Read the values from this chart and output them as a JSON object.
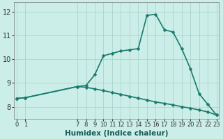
{
  "xlabel": "Humidex (Indice chaleur)",
  "bg_color": "#cceee8",
  "plot_bg_color": "#cceee8",
  "line_color": "#1a7a6e",
  "grid_color": "#aad4cc",
  "ylim": [
    7.5,
    12.4
  ],
  "yticks": [
    8,
    9,
    10,
    11,
    12
  ],
  "ytick_labels": [
    "8",
    "9",
    "10",
    "11",
    "12"
  ],
  "xtick_positions": [
    0,
    1,
    7,
    8,
    9,
    10,
    11,
    12,
    13,
    14,
    15,
    16,
    17,
    18,
    19,
    20,
    21,
    22,
    23
  ],
  "xtick_labels": [
    "0",
    "1",
    "7",
    "8",
    "9",
    "10",
    "11",
    "12",
    "13",
    "14",
    "15",
    "16",
    "17",
    "18",
    "19",
    "20",
    "21",
    "22",
    "23"
  ],
  "xlim": [
    -0.3,
    23.3
  ],
  "line1_x": [
    0,
    1,
    7,
    8,
    9,
    10,
    11,
    12,
    13,
    14,
    15,
    16,
    17,
    18,
    19,
    20,
    21,
    22,
    23
  ],
  "line1_y": [
    8.35,
    8.38,
    8.85,
    8.9,
    9.35,
    10.15,
    10.25,
    10.35,
    10.4,
    10.45,
    11.85,
    11.9,
    11.25,
    11.15,
    10.45,
    9.6,
    8.55,
    8.1,
    7.65
  ],
  "line2_x": [
    0,
    1,
    7,
    8,
    9,
    10,
    11,
    12,
    13,
    14,
    15,
    16,
    17,
    18,
    19,
    20,
    21,
    22,
    23
  ],
  "line2_y": [
    8.35,
    8.38,
    8.85,
    8.82,
    8.75,
    8.68,
    8.6,
    8.52,
    8.44,
    8.36,
    8.28,
    8.2,
    8.14,
    8.08,
    8.0,
    7.94,
    7.86,
    7.78,
    7.65
  ],
  "marker_size": 2.5,
  "linewidth": 1.2,
  "xlabel_fontsize": 7.5,
  "tick_fontsize": 6.0,
  "ytick_fontsize": 7.0
}
